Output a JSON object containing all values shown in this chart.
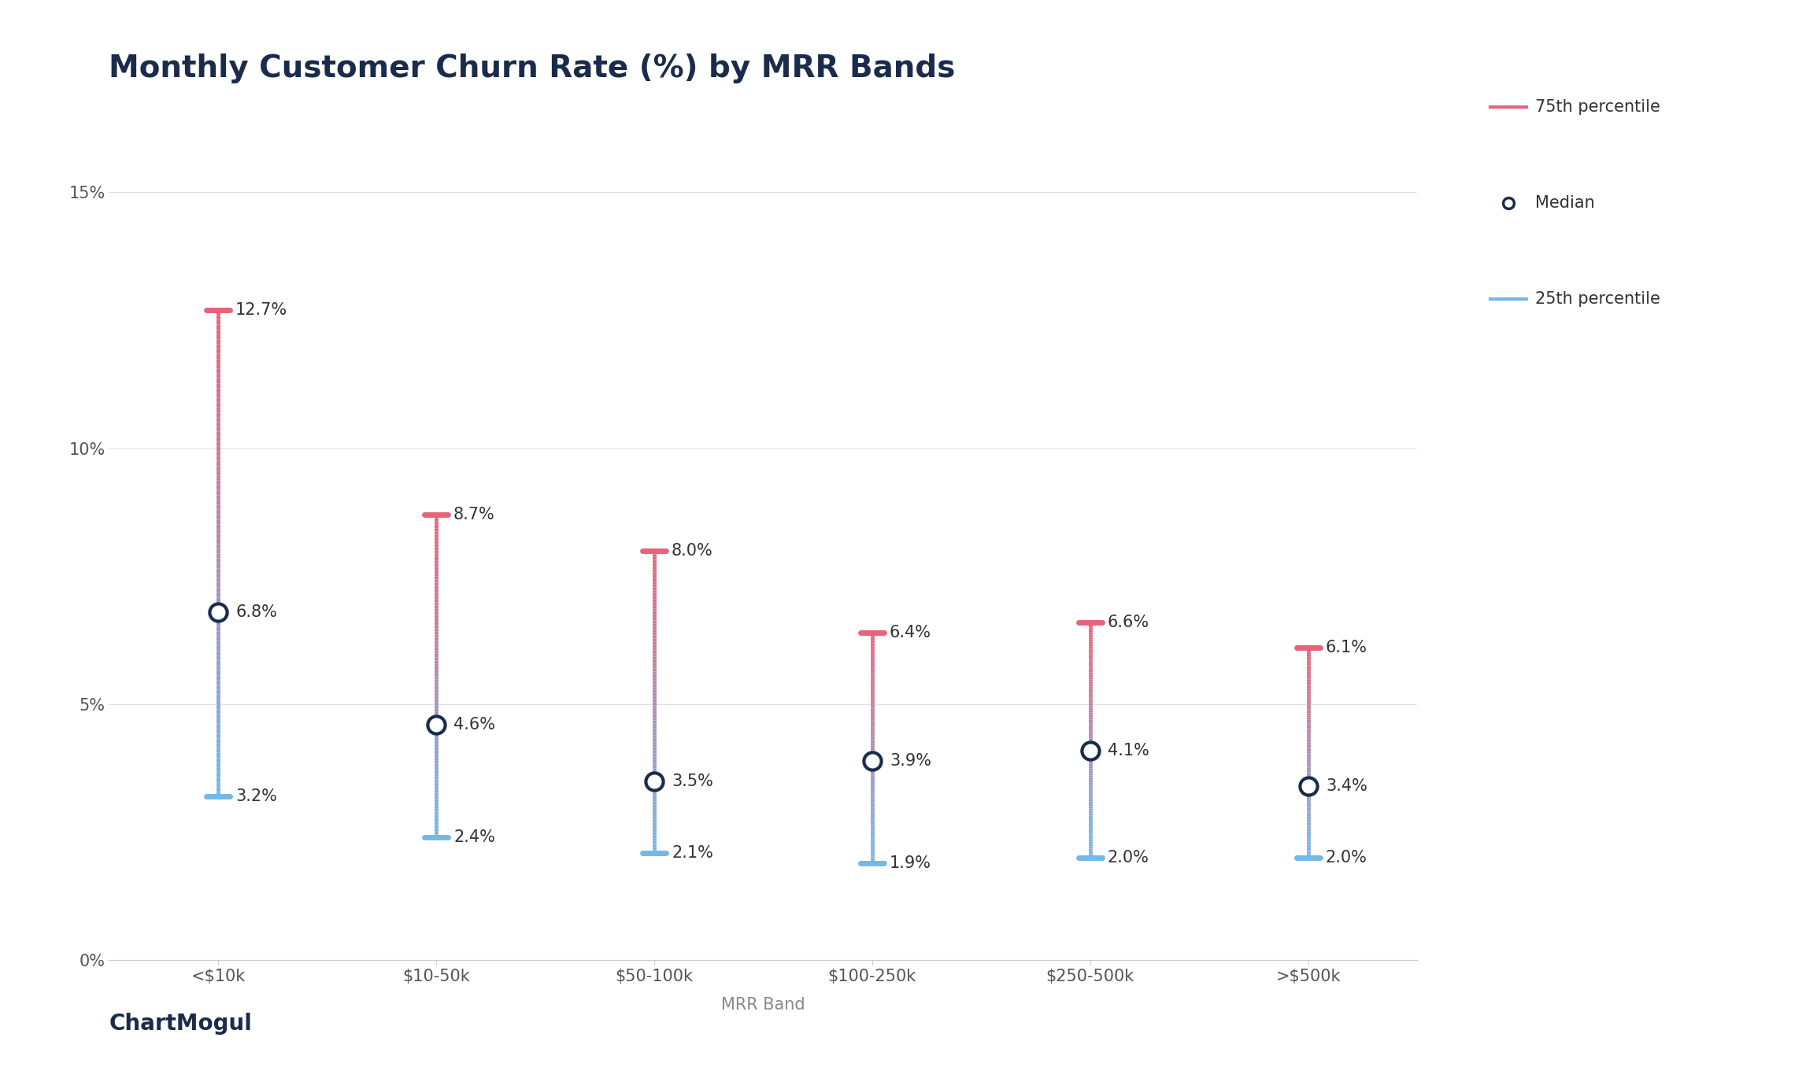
{
  "title": "Monthly Customer Churn Rate (%) by MRR Bands",
  "xlabel": "MRR Band",
  "categories": [
    "<$10k",
    "$10-50k",
    "$50-100k",
    "$100-250k",
    "$250-500k",
    ">$500k"
  ],
  "median": [
    6.8,
    4.6,
    3.5,
    3.9,
    4.1,
    3.4
  ],
  "p75": [
    12.7,
    8.7,
    8.0,
    6.4,
    6.6,
    6.1
  ],
  "p25": [
    3.2,
    2.4,
    2.1,
    1.9,
    2.0,
    2.0
  ],
  "ylim": [
    0,
    15
  ],
  "yticks": [
    0,
    5,
    10,
    15
  ],
  "color_p75": "#E8637A",
  "color_p25": "#74B8E8",
  "color_median_face": "#ffffff",
  "color_median_edge": "#1B2B4B",
  "color_title": "#1B2B4B",
  "color_axis_label": "#888888",
  "color_tick_label": "#555555",
  "color_legend_text": "#333333",
  "background_color": "#ffffff",
  "title_fontsize": 28,
  "axis_label_fontsize": 15,
  "tick_fontsize": 15,
  "annotation_fontsize": 15,
  "legend_fontsize": 15,
  "line_width": 3.5,
  "median_marker_size": 16,
  "logo_text": "ChartMogul",
  "logo_color": "#1B2B4B",
  "logo_fontsize": 20
}
